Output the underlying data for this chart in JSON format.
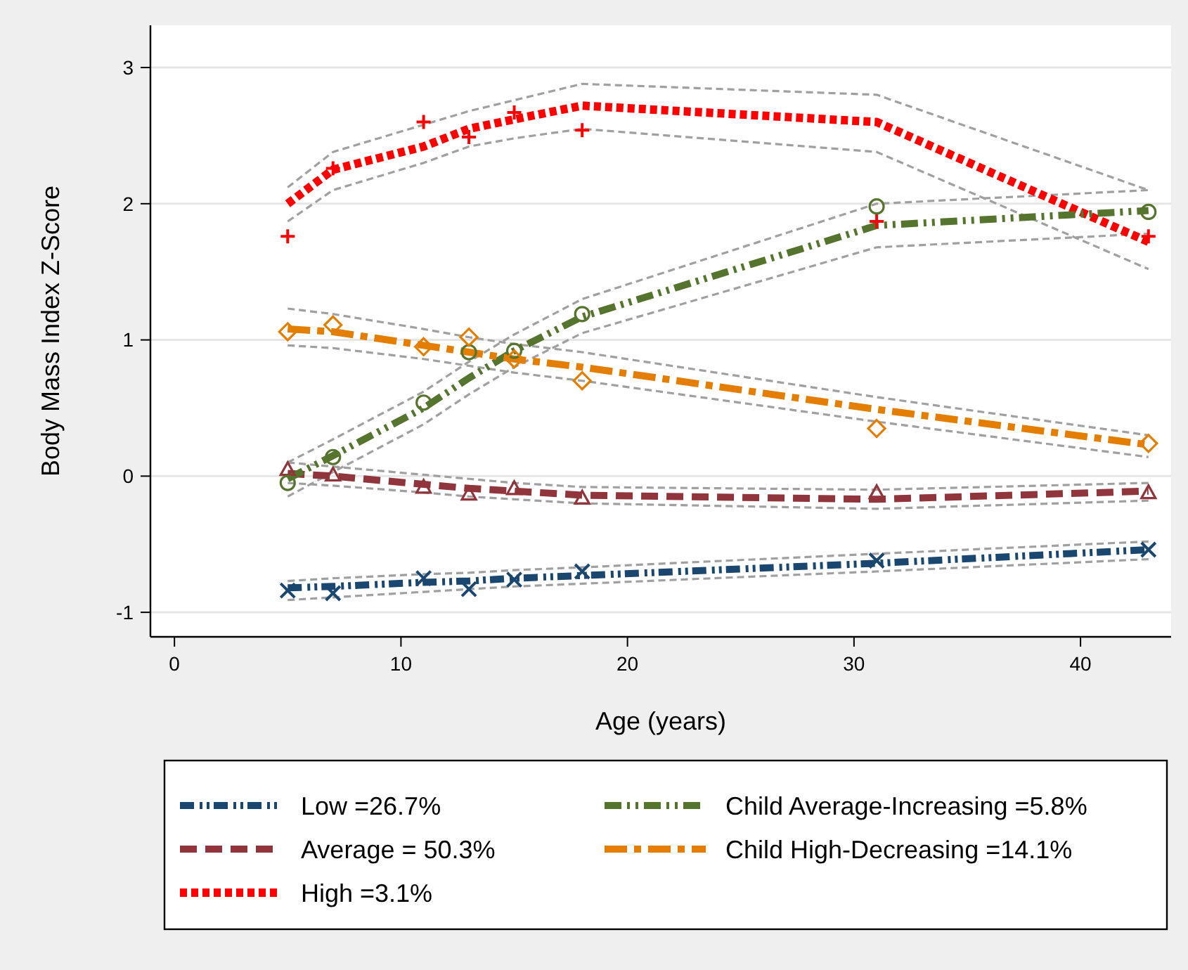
{
  "chart_data": {
    "type": "line",
    "xlabel": "Age (years)",
    "ylabel": "Body Mass Index Z-Score",
    "x": [
      5,
      7,
      11,
      13,
      15,
      18,
      31,
      43
    ],
    "xlim": [
      -1.06,
      44
    ],
    "xticks": [
      0,
      10,
      20,
      30,
      40
    ],
    "ylim": [
      -1.18,
      3.31
    ],
    "yticks": [
      -1,
      0,
      1,
      2,
      3
    ],
    "grid": "y",
    "legend": "bottom",
    "series": [
      {
        "name": "Low =26.7%",
        "color": "#1a476f",
        "line_style": "dashed",
        "values": [
          -0.82,
          -0.81,
          -0.78,
          -0.77,
          -0.75,
          -0.73,
          -0.64,
          -0.54
        ]
      },
      {
        "name": "Average = 50.3%",
        "color": "#90353b",
        "line_style": "dashed",
        "values": [
          0.02,
          0.0,
          -0.06,
          -0.09,
          -0.11,
          -0.14,
          -0.17,
          -0.11
        ]
      },
      {
        "name": "High =3.1%",
        "color": "#ff0000",
        "line_style": "dotted",
        "values": [
          2.0,
          2.25,
          2.42,
          2.55,
          2.62,
          2.72,
          2.6,
          1.72
        ]
      },
      {
        "name": "Child Average-Increasing =5.8%",
        "color": "#55752f",
        "line_style": "dashed",
        "values": [
          -0.02,
          0.15,
          0.5,
          0.72,
          0.92,
          1.17,
          1.84,
          1.95
        ]
      },
      {
        "name": "Child High-Decreasing =14.1%",
        "color": "#e37e00",
        "line_style": "dashed",
        "values": [
          1.08,
          1.06,
          0.96,
          0.91,
          0.86,
          0.8,
          0.49,
          0.23
        ]
      },
      {
        "color": "#a0a0a0",
        "line_style": "dashed",
        "values": [
          -0.91,
          -0.89,
          -0.85,
          -0.83,
          -0.81,
          -0.79,
          -0.7,
          -0.61
        ]
      },
      {
        "color": "#a0a0a0",
        "line_style": "dashed",
        "values": [
          -0.77,
          -0.75,
          -0.72,
          -0.71,
          -0.69,
          -0.67,
          -0.57,
          -0.48
        ]
      },
      {
        "color": "#a0a0a0",
        "line_style": "dashed",
        "values": [
          -0.05,
          -0.07,
          -0.12,
          -0.15,
          -0.17,
          -0.2,
          -0.24,
          -0.18
        ]
      },
      {
        "color": "#a0a0a0",
        "line_style": "dashed",
        "values": [
          0.1,
          0.07,
          0.01,
          -0.02,
          -0.05,
          -0.08,
          -0.1,
          -0.05
        ]
      },
      {
        "color": "#a0a0a0",
        "line_style": "dashed",
        "values": [
          1.87,
          2.1,
          2.3,
          2.42,
          2.48,
          2.55,
          2.38,
          1.52
        ]
      },
      {
        "color": "#a0a0a0",
        "line_style": "dashed",
        "values": [
          2.12,
          2.38,
          2.58,
          2.68,
          2.76,
          2.88,
          2.8,
          2.1
        ]
      },
      {
        "color": "#a0a0a0",
        "line_style": "dashed",
        "values": [
          -0.15,
          0.03,
          0.38,
          0.6,
          0.8,
          1.05,
          1.68,
          1.78
        ]
      },
      {
        "color": "#a0a0a0",
        "line_style": "dashed",
        "values": [
          0.1,
          0.27,
          0.62,
          0.84,
          1.04,
          1.3,
          2.0,
          2.1
        ]
      },
      {
        "color": "#a0a0a0",
        "line_style": "dashed",
        "values": [
          0.96,
          0.94,
          0.86,
          0.81,
          0.76,
          0.7,
          0.4,
          0.14
        ]
      },
      {
        "color": "#a0a0a0",
        "line_style": "dashed",
        "values": [
          1.23,
          1.19,
          1.08,
          1.02,
          0.97,
          0.91,
          0.58,
          0.3
        ]
      },
      {
        "type": "scatter",
        "color": "#1a476f",
        "marker": "cross",
        "values": [
          -0.84,
          -0.86,
          -0.75,
          -0.83,
          -0.76,
          -0.7,
          -0.62,
          -0.54
        ]
      },
      {
        "type": "scatter",
        "color": "#90353b",
        "marker": "triangle",
        "values": [
          0.05,
          0.01,
          -0.08,
          -0.13,
          -0.09,
          -0.16,
          -0.12,
          -0.12
        ]
      },
      {
        "type": "scatter",
        "color": "#ff0000",
        "marker": "plus",
        "values": [
          1.76,
          2.26,
          2.6,
          2.49,
          2.67,
          2.54,
          1.87,
          1.76
        ]
      },
      {
        "type": "scatter",
        "color": "#55752f",
        "marker": "circle",
        "values": [
          -0.05,
          0.14,
          0.54,
          0.91,
          0.92,
          1.19,
          1.98,
          1.94
        ]
      },
      {
        "type": "scatter",
        "color": "#e37e00",
        "marker": "diamond",
        "values": [
          1.06,
          1.11,
          0.95,
          1.02,
          0.86,
          0.7,
          0.35,
          0.24
        ]
      }
    ]
  }
}
